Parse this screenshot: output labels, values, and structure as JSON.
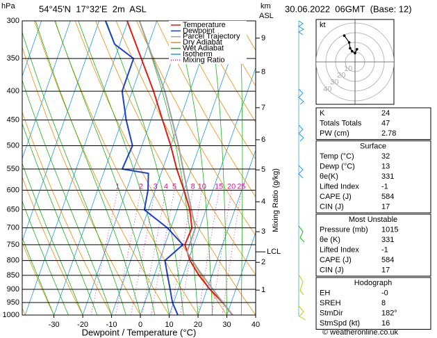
{
  "header": {
    "hpa_label": "hPa",
    "title": "54°45'N  17°32'E  2m  ASL",
    "km_label": "km",
    "asl_label": "ASL",
    "date": "30.06.2022  06GMT  (Base: 12)",
    "copyright": "© weatheronline.co.uk"
  },
  "chart_data": {
    "type": "skewt",
    "x_label": "Dewpoint / Temperature (°C)",
    "y2_label": "Mixing Ratio (g/kg)",
    "xlim": [
      -41,
      40
    ],
    "xticks": [
      -30,
      -20,
      -10,
      0,
      10,
      20,
      30,
      40
    ],
    "ylim": [
      1000,
      300
    ],
    "yticks": [
      300,
      350,
      400,
      450,
      500,
      550,
      600,
      650,
      700,
      750,
      800,
      850,
      900,
      950,
      1000
    ],
    "log_y": true,
    "grid": true,
    "series": [
      {
        "name": "Temperature",
        "color": "#e8170c",
        "pressure": [
          1000,
          950,
          900,
          850,
          800,
          750,
          700,
          650,
          600,
          550,
          500,
          450,
          400,
          350,
          300
        ],
        "temperature": [
          32,
          27,
          21,
          15.5,
          10.6,
          6.9,
          7.3,
          4.4,
          0,
          -5.1,
          -10,
          -16,
          -22.6,
          -30.8,
          -40.3
        ]
      },
      {
        "name": "Dewpoint",
        "color": "#1b3fd4",
        "pressure": [
          1000,
          950,
          900,
          850,
          800,
          750,
          700,
          650,
          600,
          560,
          550,
          500,
          450,
          400,
          350,
          330,
          300
        ],
        "temperature": [
          13,
          9.6,
          7.2,
          4.6,
          1.9,
          6.2,
          -1.2,
          -11.4,
          -12.5,
          -14.4,
          -24,
          -23.3,
          -28.6,
          -33.5,
          -33.5,
          -41.8,
          -47.8
        ]
      },
      {
        "name": "Parcel Trajectory",
        "color": "#a0a0a0",
        "pressure": [
          1000,
          900,
          850,
          800,
          772,
          700,
          600,
          500,
          400,
          300
        ],
        "temperature": [
          32,
          22,
          16.7,
          11.4,
          8.5,
          8.5,
          1.1,
          -7.3,
          -18.7,
          -36
        ]
      }
    ],
    "reference_lines": [
      {
        "name": "Dry Adiabat",
        "color": "#f08c00"
      },
      {
        "name": "Wet Adiabat",
        "color": "#18b418"
      },
      {
        "name": "Isotherm",
        "color": "#1e9be6"
      },
      {
        "name": "Mixing Ratio",
        "color": "#e0109a",
        "style": "dotted"
      }
    ],
    "mixing_ratios": [
      1,
      2,
      3,
      4,
      5,
      8,
      10,
      15,
      20,
      25
    ],
    "km_ticks": [
      1,
      2,
      3,
      4,
      5,
      6,
      7,
      8,
      9
    ],
    "km_tick_pressures": [
      903,
      806,
      711,
      629,
      552,
      488,
      428,
      370,
      322
    ],
    "lcl": {
      "label": "LCL",
      "pressure": 772
    }
  },
  "hodograph": {
    "unit_label": "kt",
    "rings": [
      10,
      20,
      30,
      40
    ],
    "u": [
      2,
      0,
      -3,
      -5,
      -6,
      -11
    ],
    "v": [
      13,
      9,
      11,
      14,
      20,
      27
    ]
  },
  "table": {
    "sections": [
      {
        "rows": [
          [
            "K",
            "24"
          ],
          [
            "Totals Totals",
            "47"
          ],
          [
            "PW (cm)",
            "2.78"
          ]
        ]
      },
      {
        "title": "Surface",
        "rows": [
          [
            "Temp (°C)",
            "32"
          ],
          [
            "Dewp (°C)",
            "13"
          ],
          [
            "θe(K)",
            "331"
          ],
          [
            "Lifted Index",
            "-1"
          ],
          [
            "CAPE (J)",
            "584"
          ],
          [
            "CIN (J)",
            "17"
          ]
        ]
      },
      {
        "title": "Most Unstable",
        "rows": [
          [
            "Pressure (mb)",
            "1015"
          ],
          [
            "θe (K)",
            "331"
          ],
          [
            "Lifted Index",
            "-1"
          ],
          [
            "CAPE (J)",
            "584"
          ],
          [
            "CIN (J)",
            "17"
          ]
        ]
      },
      {
        "title": "Hodograph",
        "rows": [
          [
            "EH",
            "-0"
          ],
          [
            "SREH",
            "8"
          ],
          [
            "StmDir",
            "182°"
          ],
          [
            "StmSpd (kt)",
            "16"
          ]
        ]
      }
    ]
  }
}
